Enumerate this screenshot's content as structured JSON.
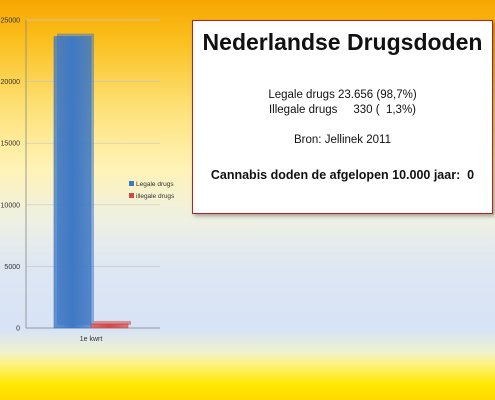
{
  "chart_data": {
    "type": "bar",
    "categories": [
      "1e kwrt"
    ],
    "series": [
      {
        "name": "Legale drugs",
        "values": [
          23656
        ],
        "color": "#3f78c4"
      },
      {
        "name": "illegale drugs",
        "values": [
          330
        ],
        "color": "#d04a48"
      }
    ],
    "ylim": [
      0,
      25000
    ],
    "yticks": [
      0,
      5000,
      10000,
      15000,
      20000,
      25000
    ],
    "grid": true,
    "legend_position": "right"
  },
  "info": {
    "title": "Nederlandse Drugsdoden",
    "legal_line": "Legale drugs 23.656 (98,7%)",
    "illegal_line": "Illegale drugs     330 (  1,3%)",
    "source_line": "Bron: Jellinek 2011",
    "cannabis_line": "Cannabis doden de afgelopen 10.000 jaar:  0"
  }
}
